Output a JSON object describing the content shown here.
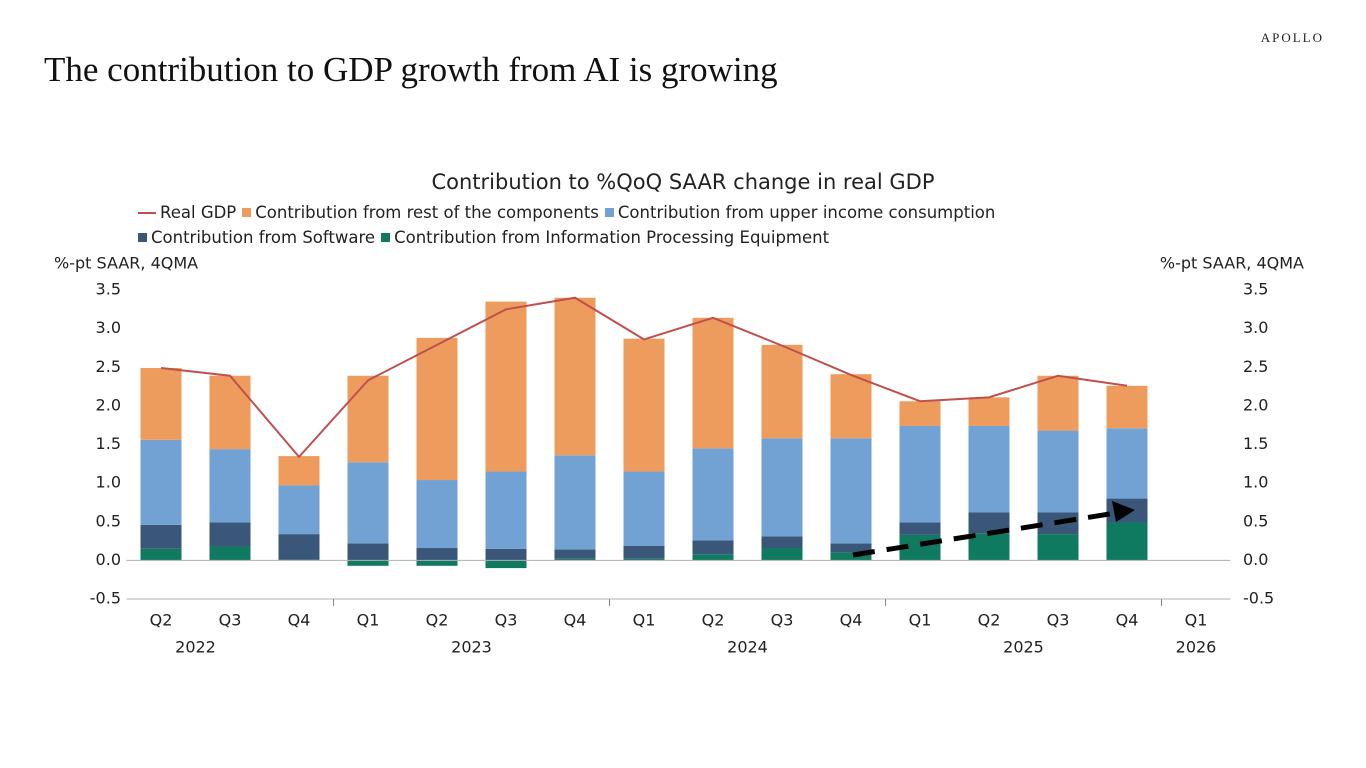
{
  "brand": "APOLLO",
  "heading": "The contribution to GDP growth from AI is growing",
  "chart_data": {
    "type": "bar",
    "title": "Contribution to %QoQ SAAR change in real GDP",
    "y_label": "%-pt SAAR, 4QMA",
    "y2_label": "%-pt SAAR, 4QMA",
    "categories": [
      "Q2",
      "Q3",
      "Q4",
      "Q1",
      "Q2",
      "Q3",
      "Q4",
      "Q1",
      "Q2",
      "Q3",
      "Q4",
      "Q1",
      "Q2",
      "Q3",
      "Q4",
      "Q1"
    ],
    "x_groups": [
      {
        "label": "2022",
        "count": 3
      },
      {
        "label": "2023",
        "count": 4
      },
      {
        "label": "2024",
        "count": 4
      },
      {
        "label": "2025",
        "count": 4
      },
      {
        "label": "2026",
        "count": 1
      }
    ],
    "series": [
      {
        "name": "Real GDP",
        "type": "line",
        "color": "#c0504d",
        "values": [
          2.49,
          2.39,
          1.34,
          2.33,
          2.79,
          3.25,
          3.4,
          2.86,
          3.14,
          2.78,
          2.4,
          2.06,
          2.11,
          2.39,
          2.26,
          null
        ]
      },
      {
        "name": "Contribution from rest of the components",
        "type": "bar",
        "color": "#ed9c5e",
        "values": [
          0.93,
          0.95,
          0.38,
          1.12,
          1.84,
          2.2,
          2.04,
          1.72,
          1.69,
          1.21,
          0.83,
          0.32,
          0.37,
          0.71,
          0.55,
          null
        ]
      },
      {
        "name": "Contribution from upper income consumption",
        "type": "bar",
        "color": "#72a2d4",
        "values": [
          1.1,
          0.95,
          0.63,
          1.05,
          0.88,
          1.0,
          1.22,
          0.96,
          1.19,
          1.27,
          1.36,
          1.25,
          1.12,
          1.06,
          0.91,
          null
        ]
      },
      {
        "name": "Contribution from Software",
        "type": "bar",
        "color": "#3a5779",
        "values": [
          0.31,
          0.31,
          0.33,
          0.22,
          0.16,
          0.15,
          0.12,
          0.17,
          0.18,
          0.15,
          0.12,
          0.16,
          0.27,
          0.28,
          0.31,
          null
        ]
      },
      {
        "name": "Contribution from Information Processing Equipment",
        "type": "bar",
        "color": "#0f7a5f",
        "values": [
          0.15,
          0.18,
          0.01,
          -0.07,
          -0.07,
          -0.1,
          0.02,
          0.02,
          0.08,
          0.16,
          0.1,
          0.33,
          0.35,
          0.34,
          0.49,
          null
        ]
      }
    ],
    "ylim": [
      -0.5,
      3.5
    ],
    "yticks": [
      3.5,
      {
        "value": 3,
        "label": "3.0"
      },
      2.5,
      {
        "value": 2,
        "label": "2.0"
      },
      1.5,
      {
        "value": 1,
        "label": "1.0"
      },
      0.5,
      {
        "value": 0,
        "label": "0.0"
      },
      -0.5
    ],
    "y2lim": [
      -0.5,
      3.5
    ],
    "y2ticks": [
      3.5,
      {
        "value": 3,
        "label": "3.0"
      },
      2.5,
      {
        "value": 2,
        "label": "2.0"
      },
      1.5,
      {
        "value": 1,
        "label": "1.0"
      },
      0.5,
      {
        "value": 0,
        "label": "0.0"
      },
      -0.5
    ],
    "grid": false
  }
}
